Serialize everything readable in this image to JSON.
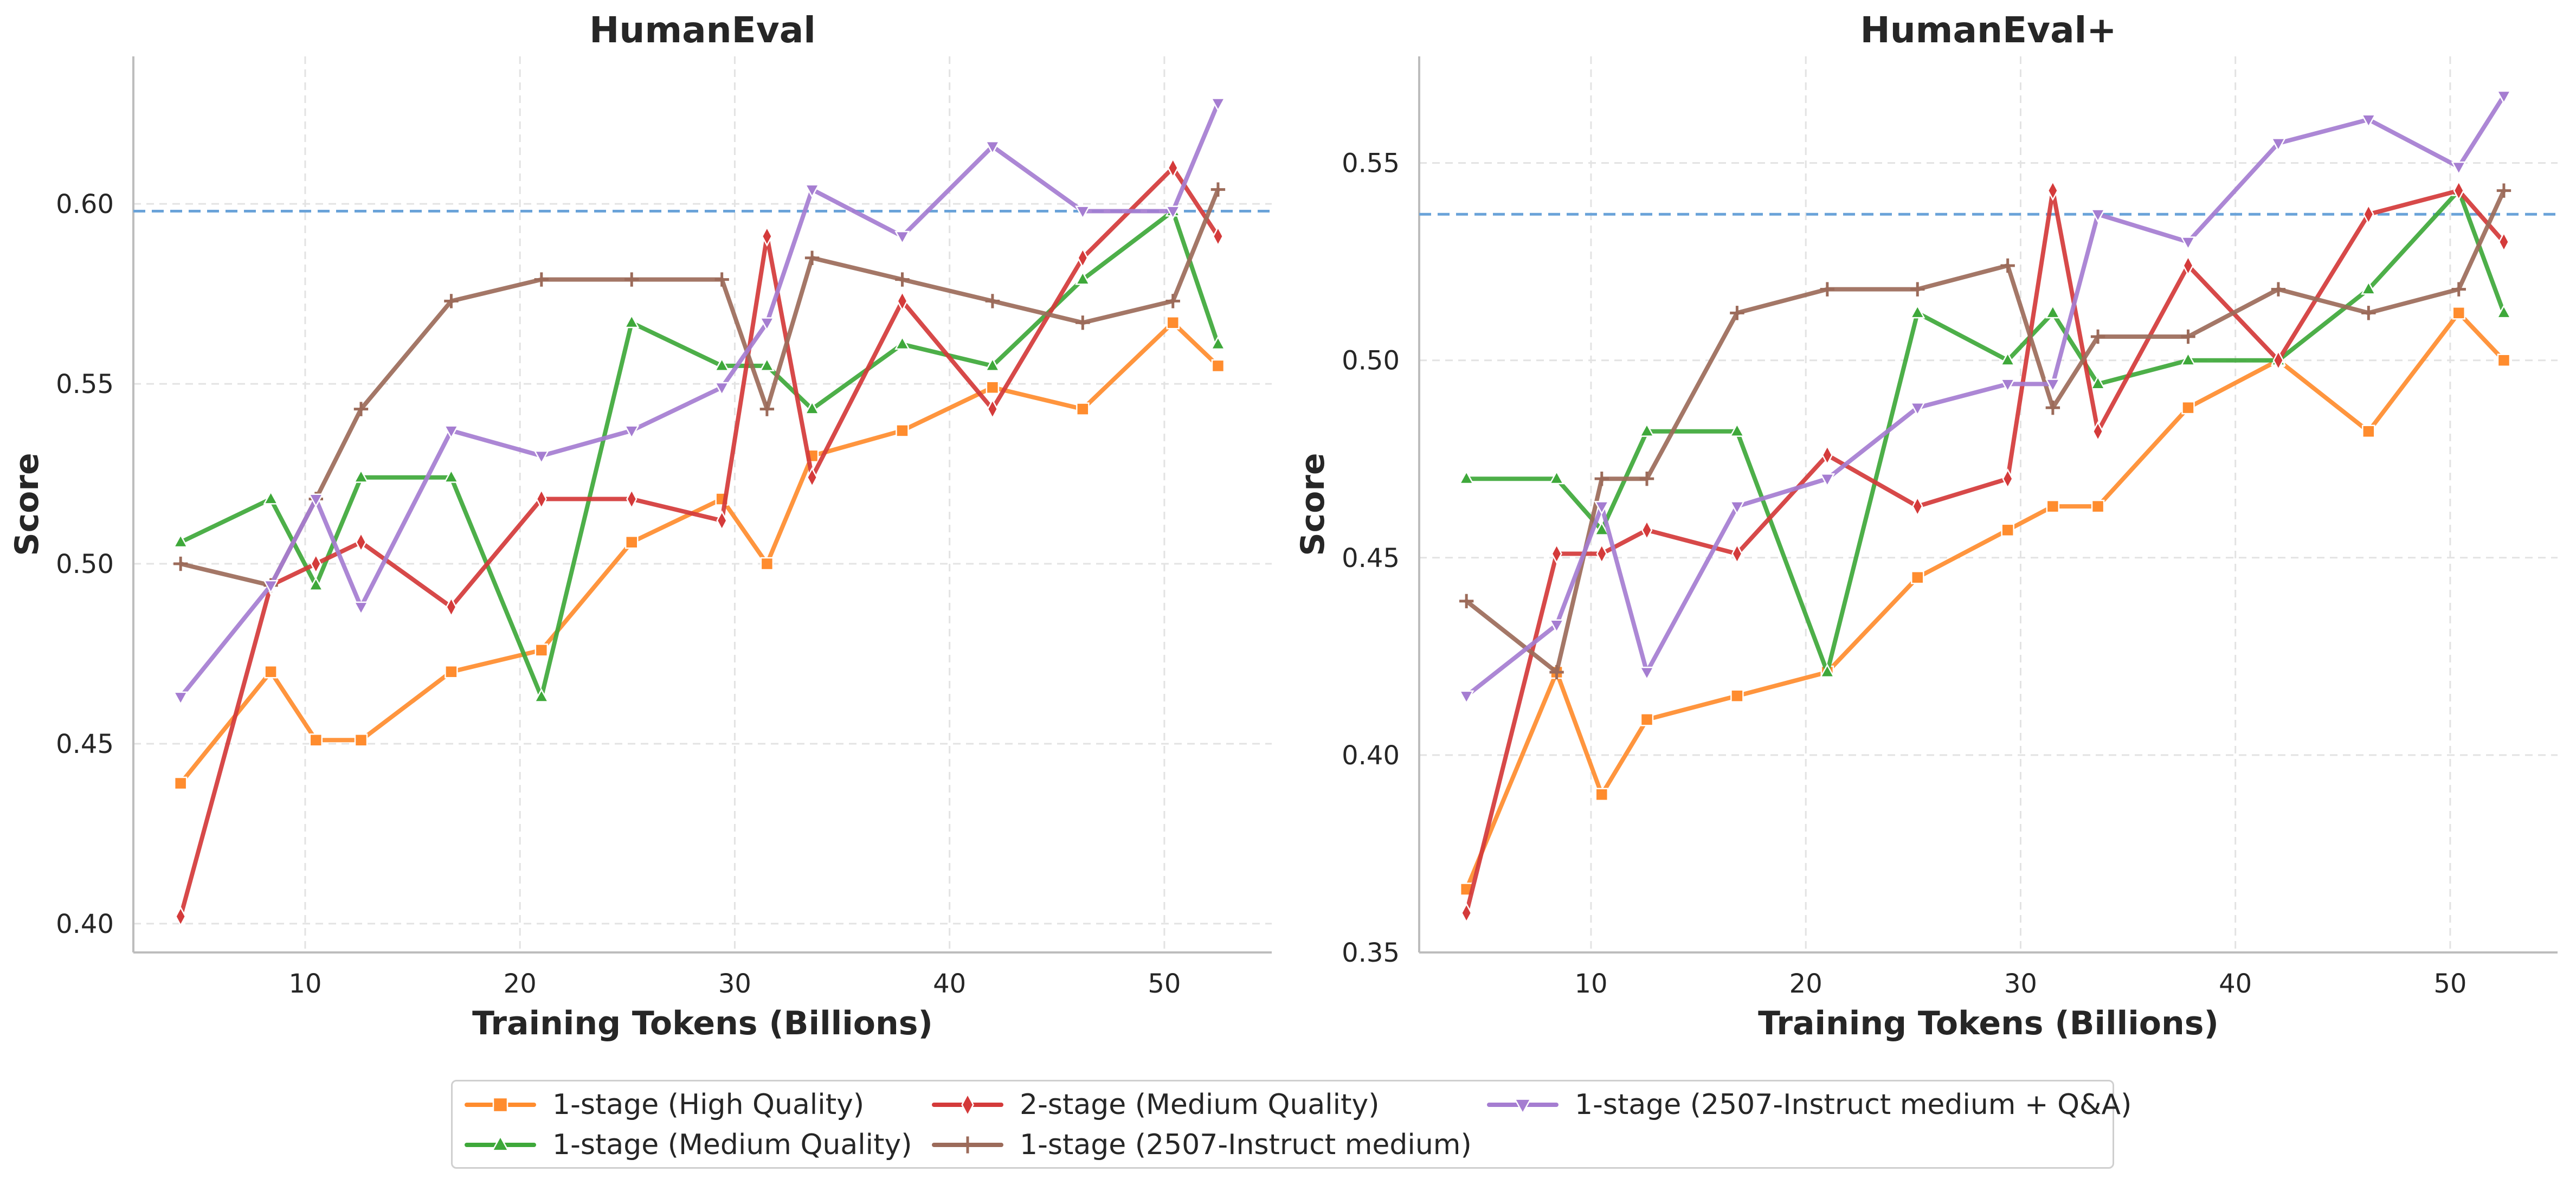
{
  "chart_data": [
    {
      "type": "line",
      "title": "HumanEval",
      "xlabel": "Training Tokens (Billions)",
      "ylabel": "Score",
      "xlim": [
        2,
        55
      ],
      "ylim": [
        0.392,
        0.641
      ],
      "xticks": [
        10,
        20,
        30,
        40,
        50
      ],
      "yticks": [
        0.4,
        0.45,
        0.5,
        0.55,
        0.6
      ],
      "xtick_labels": [
        "10",
        "20",
        "30",
        "40",
        "50"
      ],
      "ytick_labels": [
        "0.40",
        "0.45",
        "0.50",
        "0.55",
        "0.60"
      ],
      "grid": true,
      "reference_line": 0.598,
      "series": [
        {
          "name": "1-stage (High Quality)",
          "x": [
            4.2,
            8.4,
            10.5,
            12.6,
            16.8,
            21.0,
            25.2,
            29.4,
            31.5,
            33.6,
            37.8,
            42.0,
            46.2,
            50.4,
            52.5
          ],
          "y": [
            0.439,
            0.47,
            0.451,
            0.451,
            0.47,
            0.476,
            0.506,
            0.518,
            0.5,
            0.53,
            0.537,
            0.549,
            0.543,
            0.567,
            0.555
          ]
        },
        {
          "name": "1-stage (Medium Quality)",
          "x": [
            4.2,
            8.4,
            10.5,
            12.6,
            16.8,
            21.0,
            25.2,
            29.4,
            31.5,
            33.6,
            37.8,
            42.0,
            46.2,
            50.4,
            52.5
          ],
          "y": [
            0.506,
            0.518,
            0.494,
            0.524,
            0.524,
            0.463,
            0.567,
            0.555,
            0.555,
            0.543,
            0.561,
            0.555,
            0.579,
            0.598,
            0.561
          ]
        },
        {
          "name": "2-stage (Medium Quality)",
          "x": [
            4.2,
            8.4,
            10.5,
            12.6,
            16.8,
            21.0,
            25.2,
            29.4,
            31.5,
            33.6,
            37.8,
            42.0,
            46.2,
            50.4,
            52.5
          ],
          "y": [
            0.402,
            0.494,
            0.5,
            0.506,
            0.488,
            0.518,
            0.518,
            0.512,
            0.591,
            0.524,
            0.573,
            0.543,
            0.585,
            0.61,
            0.591
          ]
        },
        {
          "name": "1-stage (2507-Instruct medium)",
          "x": [
            4.2,
            8.4,
            10.5,
            12.6,
            16.8,
            21.0,
            25.2,
            29.4,
            31.5,
            33.6,
            37.8,
            42.0,
            46.2,
            50.4,
            52.5
          ],
          "y": [
            0.5,
            0.494,
            0.518,
            0.543,
            0.573,
            0.579,
            0.579,
            0.579,
            0.543,
            0.585,
            0.579,
            0.573,
            0.567,
            0.573,
            0.604
          ]
        },
        {
          "name": "1-stage (2507-Instruct medium + Q&A)",
          "x": [
            4.2,
            8.4,
            10.5,
            12.6,
            16.8,
            21.0,
            25.2,
            29.4,
            31.5,
            33.6,
            37.8,
            42.0,
            46.2,
            50.4,
            52.5
          ],
          "y": [
            0.463,
            0.494,
            0.518,
            0.488,
            0.537,
            0.53,
            0.537,
            0.549,
            0.567,
            0.604,
            0.591,
            0.616,
            0.598,
            0.598,
            0.628
          ]
        }
      ]
    },
    {
      "type": "line",
      "title": "HumanEval+",
      "xlabel": "Training Tokens (Billions)",
      "ylabel": "Score",
      "xlim": [
        2,
        55
      ],
      "ylim": [
        0.35,
        0.577
      ],
      "xticks": [
        10,
        20,
        30,
        40,
        50
      ],
      "yticks": [
        0.35,
        0.4,
        0.45,
        0.5,
        0.55
      ],
      "xtick_labels": [
        "10",
        "20",
        "30",
        "40",
        "50"
      ],
      "ytick_labels": [
        "0.35",
        "0.40",
        "0.45",
        "0.50",
        "0.55"
      ],
      "grid": true,
      "reference_line": 0.537,
      "series": [
        {
          "name": "1-stage (High Quality)",
          "x": [
            4.2,
            8.4,
            10.5,
            12.6,
            16.8,
            21.0,
            25.2,
            29.4,
            31.5,
            33.6,
            37.8,
            42.0,
            46.2,
            50.4,
            52.5
          ],
          "y": [
            0.366,
            0.421,
            0.39,
            0.409,
            0.415,
            0.421,
            0.445,
            0.457,
            0.463,
            0.463,
            0.488,
            0.5,
            0.482,
            0.512,
            0.5
          ]
        },
        {
          "name": "1-stage (Medium Quality)",
          "x": [
            4.2,
            8.4,
            10.5,
            12.6,
            16.8,
            21.0,
            25.2,
            29.4,
            31.5,
            33.6,
            37.8,
            42.0,
            46.2,
            50.4,
            52.5
          ],
          "y": [
            0.47,
            0.47,
            0.457,
            0.482,
            0.482,
            0.421,
            0.512,
            0.5,
            0.512,
            0.494,
            0.5,
            0.5,
            0.518,
            0.543,
            0.512
          ]
        },
        {
          "name": "2-stage (Medium Quality)",
          "x": [
            4.2,
            8.4,
            10.5,
            12.6,
            16.8,
            21.0,
            25.2,
            29.4,
            31.5,
            33.6,
            37.8,
            42.0,
            46.2,
            50.4,
            52.5
          ],
          "y": [
            0.36,
            0.451,
            0.451,
            0.457,
            0.451,
            0.476,
            0.463,
            0.47,
            0.543,
            0.482,
            0.524,
            0.5,
            0.537,
            0.543,
            0.53
          ]
        },
        {
          "name": "1-stage (2507-Instruct medium)",
          "x": [
            4.2,
            8.4,
            10.5,
            12.6,
            16.8,
            21.0,
            25.2,
            29.4,
            31.5,
            33.6,
            37.8,
            42.0,
            46.2,
            50.4,
            52.5
          ],
          "y": [
            0.439,
            0.421,
            0.47,
            0.47,
            0.512,
            0.518,
            0.518,
            0.524,
            0.488,
            0.506,
            0.506,
            0.518,
            0.512,
            0.518,
            0.543
          ]
        },
        {
          "name": "1-stage (2507-Instruct medium + Q&A)",
          "x": [
            4.2,
            8.4,
            10.5,
            12.6,
            16.8,
            21.0,
            25.2,
            29.4,
            31.5,
            33.6,
            37.8,
            42.0,
            46.2,
            50.4,
            52.5
          ],
          "y": [
            0.415,
            0.433,
            0.463,
            0.421,
            0.463,
            0.47,
            0.488,
            0.494,
            0.494,
            0.537,
            0.53,
            0.555,
            0.561,
            0.549,
            0.567
          ]
        }
      ]
    }
  ],
  "legend": {
    "placement": "bottom-center",
    "items": [
      {
        "label": "1-stage (High Quality)",
        "color": "#ff8c2e",
        "marker": "square"
      },
      {
        "label": "1-stage (Medium Quality)",
        "color": "#3ea83a",
        "marker": "triangle-up"
      },
      {
        "label": "2-stage (Medium Quality)",
        "color": "#d43a3a",
        "marker": "diamond"
      },
      {
        "label": "1-stage (2507-Instruct medium)",
        "color": "#9c6b5a",
        "marker": "plus"
      },
      {
        "label": "1-stage (2507-Instruct medium + Q&A)",
        "color": "#a57dd1",
        "marker": "triangle-down"
      }
    ]
  },
  "colors": {
    "reference_line": "#6aa3d9",
    "grid": "#e3e3e3",
    "axis": "#bdbdbd",
    "text": "#262626"
  }
}
